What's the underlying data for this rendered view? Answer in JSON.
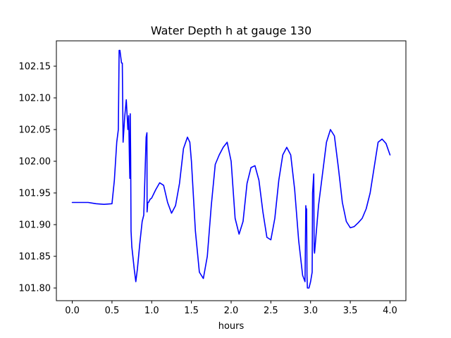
{
  "chart_data": {
    "type": "line",
    "title": "Water Depth h at gauge 130",
    "xlabel": "hours",
    "ylabel": "",
    "xlim": [
      -0.2,
      4.2
    ],
    "ylim": [
      101.78,
      102.19
    ],
    "xticks": [
      0.0,
      0.5,
      1.0,
      1.5,
      2.0,
      2.5,
      3.0,
      3.5,
      4.0
    ],
    "xtick_labels": [
      "0.0",
      "0.5",
      "1.0",
      "1.5",
      "2.0",
      "2.5",
      "3.0",
      "3.5",
      "4.0"
    ],
    "yticks": [
      101.8,
      101.85,
      101.9,
      101.95,
      102.0,
      102.05,
      102.1,
      102.15
    ],
    "ytick_labels": [
      "101.80",
      "101.85",
      "101.90",
      "101.95",
      "102.00",
      "102.05",
      "102.10",
      "102.15"
    ],
    "grid": false,
    "series": [
      {
        "color": "#0000ff",
        "x": [
          0.0,
          0.2,
          0.3,
          0.4,
          0.5,
          0.53,
          0.56,
          0.58,
          0.59,
          0.6,
          0.62,
          0.63,
          0.64,
          0.66,
          0.68,
          0.7,
          0.71,
          0.72,
          0.725,
          0.73,
          0.735,
          0.74,
          0.75,
          0.78,
          0.8,
          0.82,
          0.85,
          0.88,
          0.9,
          0.93,
          0.94,
          0.942,
          0.945,
          0.948,
          0.95,
          0.96,
          0.98,
          1.0,
          1.05,
          1.1,
          1.15,
          1.2,
          1.25,
          1.3,
          1.35,
          1.4,
          1.45,
          1.48,
          1.5,
          1.55,
          1.6,
          1.65,
          1.7,
          1.75,
          1.8,
          1.85,
          1.9,
          1.95,
          2.0,
          2.05,
          2.1,
          2.15,
          2.2,
          2.25,
          2.3,
          2.35,
          2.4,
          2.45,
          2.5,
          2.55,
          2.6,
          2.65,
          2.7,
          2.75,
          2.8,
          2.85,
          2.9,
          2.93,
          2.94,
          2.945,
          2.95,
          2.955,
          2.96,
          2.98,
          3.0,
          3.02,
          3.025,
          3.03,
          3.04,
          3.045,
          3.05,
          3.1,
          3.15,
          3.2,
          3.25,
          3.3,
          3.35,
          3.4,
          3.45,
          3.5,
          3.55,
          3.6,
          3.65,
          3.7,
          3.75,
          3.8,
          3.85,
          3.9,
          3.95,
          4.0
        ],
        "y": [
          101.935,
          101.935,
          101.933,
          101.932,
          101.933,
          101.97,
          102.03,
          102.05,
          102.175,
          102.175,
          102.155,
          102.155,
          102.03,
          102.07,
          102.097,
          102.05,
          102.072,
          102.0,
          101.973,
          102.075,
          102.01,
          101.89,
          101.865,
          101.83,
          101.81,
          101.83,
          101.87,
          101.905,
          101.915,
          102.038,
          102.045,
          101.92,
          101.925,
          101.93,
          101.935,
          101.935,
          101.94,
          101.942,
          101.955,
          101.966,
          101.962,
          101.935,
          101.918,
          101.93,
          101.965,
          102.02,
          102.038,
          102.03,
          102.0,
          101.89,
          101.825,
          101.815,
          101.85,
          101.93,
          101.995,
          102.01,
          102.022,
          102.03,
          102.0,
          101.91,
          101.885,
          101.905,
          101.965,
          101.99,
          101.993,
          101.97,
          101.92,
          101.88,
          101.876,
          101.91,
          101.97,
          102.01,
          102.022,
          102.01,
          101.955,
          101.875,
          101.82,
          101.81,
          101.93,
          101.92,
          101.925,
          101.82,
          101.8,
          101.8,
          101.81,
          101.825,
          101.95,
          101.96,
          101.98,
          101.86,
          101.855,
          101.93,
          101.98,
          102.03,
          102.05,
          102.04,
          101.99,
          101.935,
          101.905,
          101.895,
          101.897,
          101.903,
          101.91,
          101.925,
          101.95,
          101.99,
          102.03,
          102.035,
          102.028,
          102.01
        ]
      }
    ]
  }
}
